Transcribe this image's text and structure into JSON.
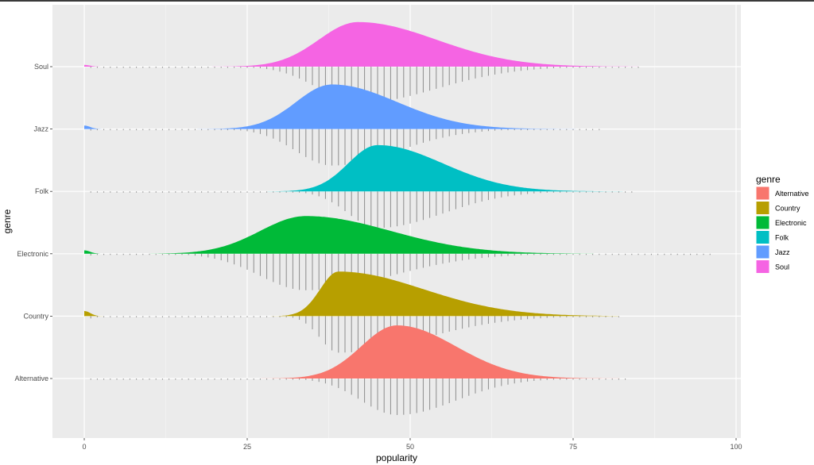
{
  "chart_data": {
    "type": "area",
    "subtype": "ridgeline with rug",
    "xlabel": "popularity",
    "ylabel": "genre",
    "xlim": [
      -4,
      100
    ],
    "x_ticks": [
      0,
      25,
      50,
      75,
      100
    ],
    "x_tick_labels": [
      "0",
      "25",
      "50",
      "75",
      "100"
    ],
    "grid": true,
    "legend_position": "right",
    "legend_title": "genre",
    "categories": [
      "Alternative",
      "Country",
      "Electronic",
      "Folk",
      "Jazz",
      "Soul"
    ],
    "series": [
      {
        "name": "Alternative",
        "color": "#F8766D",
        "peak": 48,
        "sd_left": 5.5,
        "sd_right": 9,
        "height": 0.62,
        "low_bump": 0,
        "min": 0,
        "max": 83
      },
      {
        "name": "Country",
        "color": "#B79F00",
        "peak": 39,
        "sd_left": 2.8,
        "sd_right": 13,
        "height": 0.52,
        "low_bump": 0.06,
        "min": 0,
        "max": 82
      },
      {
        "name": "Electronic",
        "color": "#00BA38",
        "peak": 34,
        "sd_left": 7,
        "sd_right": 13,
        "height": 0.44,
        "low_bump": 0.04,
        "min": 0,
        "max": 96
      },
      {
        "name": "Folk",
        "color": "#00BFC4",
        "peak": 45,
        "sd_left": 4.5,
        "sd_right": 10,
        "height": 0.54,
        "low_bump": 0,
        "min": 0,
        "max": 84
      },
      {
        "name": "Jazz",
        "color": "#619CFF",
        "peak": 38,
        "sd_left": 5.5,
        "sd_right": 10,
        "height": 0.52,
        "low_bump": 0.04,
        "min": 0,
        "max": 79
      },
      {
        "name": "Soul",
        "color": "#F564E3",
        "peak": 42,
        "sd_left": 6,
        "sd_right": 12,
        "height": 0.52,
        "low_bump": 0.02,
        "min": 0,
        "max": 85
      }
    ],
    "rug_color": "#8c8c8c"
  }
}
